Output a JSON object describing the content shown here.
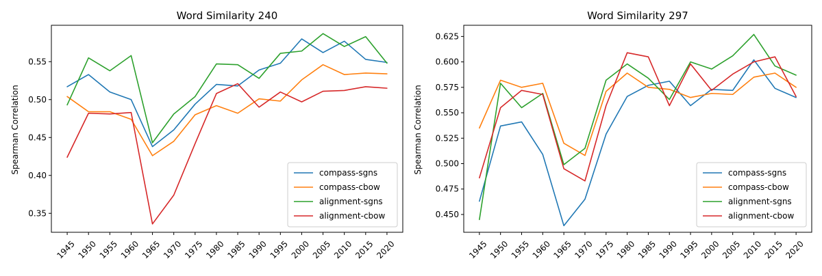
{
  "chart_data": [
    {
      "type": "line",
      "title": "Word Similarity 240",
      "xlabel": "",
      "ylabel": "Spearman Correlation",
      "categories": [
        "1945",
        "1950",
        "1955",
        "1960",
        "1965",
        "1970",
        "1975",
        "1980",
        "1985",
        "1990",
        "1995",
        "2000",
        "2005",
        "2010",
        "2015",
        "2020"
      ],
      "ylim": [
        0.325,
        0.598
      ],
      "yticks": [
        "0.35",
        "0.40",
        "0.45",
        "0.50",
        "0.55"
      ],
      "yticks_values": [
        0.35,
        0.4,
        0.45,
        0.5,
        0.55
      ],
      "legend": "lower-right",
      "grid": false,
      "series": [
        {
          "name": "compass-sgns",
          "color": "#1f77b4",
          "values": [
            0.517,
            0.533,
            0.51,
            0.5,
            0.438,
            0.46,
            0.494,
            0.52,
            0.518,
            0.539,
            0.548,
            0.58,
            0.562,
            0.577,
            0.553,
            0.549
          ]
        },
        {
          "name": "compass-cbow",
          "color": "#ff7f0e",
          "values": [
            0.504,
            0.484,
            0.484,
            0.474,
            0.426,
            0.445,
            0.48,
            0.492,
            0.482,
            0.501,
            0.498,
            0.526,
            0.546,
            0.533,
            0.535,
            0.534
          ]
        },
        {
          "name": "alignment-sgns",
          "color": "#2ca02c",
          "values": [
            0.493,
            0.555,
            0.538,
            0.558,
            0.443,
            0.481,
            0.504,
            0.547,
            0.546,
            0.528,
            0.561,
            0.564,
            0.587,
            0.57,
            0.583,
            0.548
          ]
        },
        {
          "name": "alignment-cbow",
          "color": "#d62728",
          "values": [
            0.424,
            0.482,
            0.481,
            0.483,
            0.336,
            0.374,
            0.442,
            0.508,
            0.521,
            0.49,
            0.51,
            0.497,
            0.511,
            0.512,
            0.517,
            0.515
          ]
        }
      ]
    },
    {
      "type": "line",
      "title": "Word Similarity 297",
      "xlabel": "",
      "ylabel": "Spearman Correlation",
      "categories": [
        "1945",
        "1950",
        "1955",
        "1960",
        "1965",
        "1970",
        "1975",
        "1980",
        "1985",
        "1990",
        "1995",
        "2000",
        "2005",
        "2010",
        "2015",
        "2020"
      ],
      "ylim": [
        0.4325,
        0.636
      ],
      "yticks": [
        "0.450",
        "0.475",
        "0.500",
        "0.525",
        "0.550",
        "0.575",
        "0.600",
        "0.625"
      ],
      "yticks_values": [
        0.45,
        0.475,
        0.5,
        0.525,
        0.55,
        0.575,
        0.6,
        0.625
      ],
      "legend": "lower-right",
      "grid": false,
      "series": [
        {
          "name": "compass-sgns",
          "color": "#1f77b4",
          "values": [
            0.463,
            0.537,
            0.541,
            0.509,
            0.439,
            0.465,
            0.529,
            0.566,
            0.577,
            0.581,
            0.557,
            0.573,
            0.572,
            0.602,
            0.574,
            0.565
          ]
        },
        {
          "name": "compass-cbow",
          "color": "#ff7f0e",
          "values": [
            0.535,
            0.582,
            0.575,
            0.579,
            0.52,
            0.508,
            0.571,
            0.589,
            0.575,
            0.573,
            0.565,
            0.569,
            0.568,
            0.585,
            0.589,
            0.575
          ]
        },
        {
          "name": "alignment-sgns",
          "color": "#2ca02c",
          "values": [
            0.445,
            0.579,
            0.555,
            0.569,
            0.499,
            0.515,
            0.582,
            0.598,
            0.584,
            0.563,
            0.6,
            0.593,
            0.606,
            0.627,
            0.596,
            0.587
          ]
        },
        {
          "name": "alignment-cbow",
          "color": "#d62728",
          "values": [
            0.486,
            0.555,
            0.572,
            0.568,
            0.495,
            0.483,
            0.557,
            0.609,
            0.605,
            0.557,
            0.598,
            0.572,
            0.588,
            0.6,
            0.605,
            0.566
          ]
        }
      ]
    }
  ]
}
